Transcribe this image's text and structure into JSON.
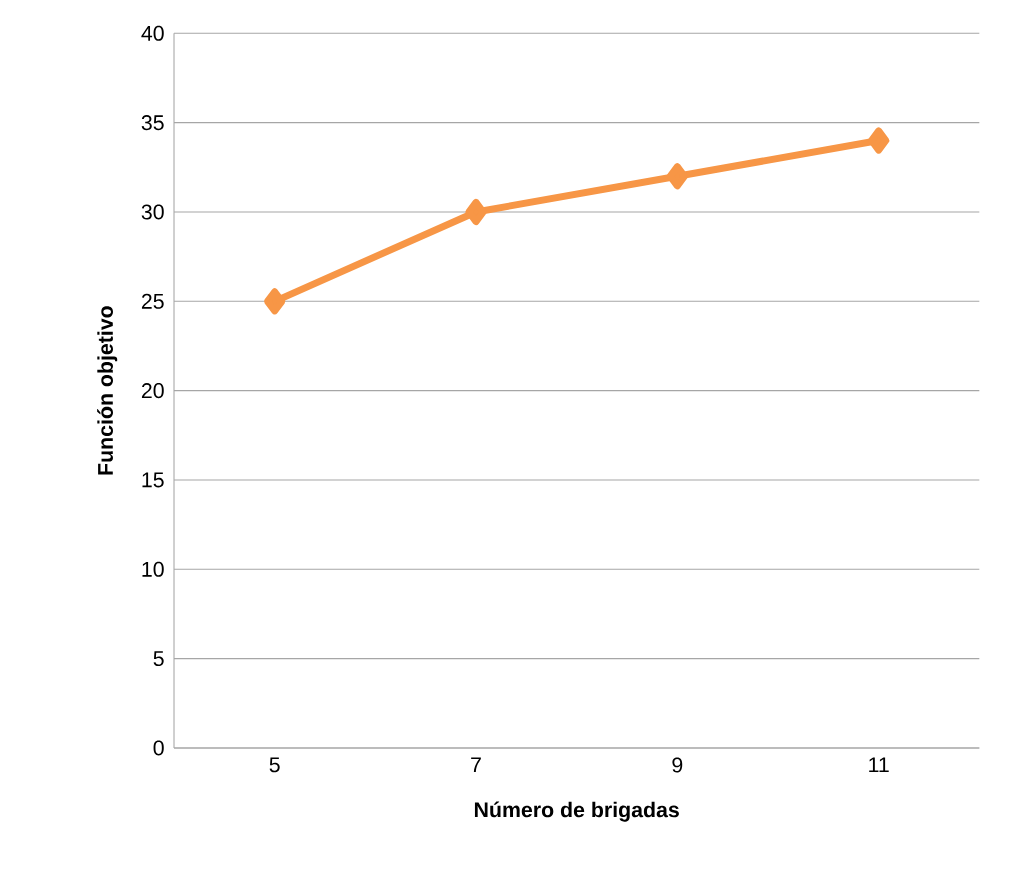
{
  "chart_data": {
    "type": "line",
    "xlabel": "Número de brigadas",
    "ylabel": "Función objetivo",
    "categories": [
      "5",
      "7",
      "9",
      "11"
    ],
    "series": [
      {
        "color": "#f79646",
        "values": [
          25,
          30,
          32,
          34
        ]
      }
    ],
    "ylim": [
      0,
      40
    ],
    "yticks": [
      0,
      5,
      10,
      15,
      20,
      25,
      30,
      35,
      40
    ],
    "grid": "y",
    "marker": "diamond"
  }
}
